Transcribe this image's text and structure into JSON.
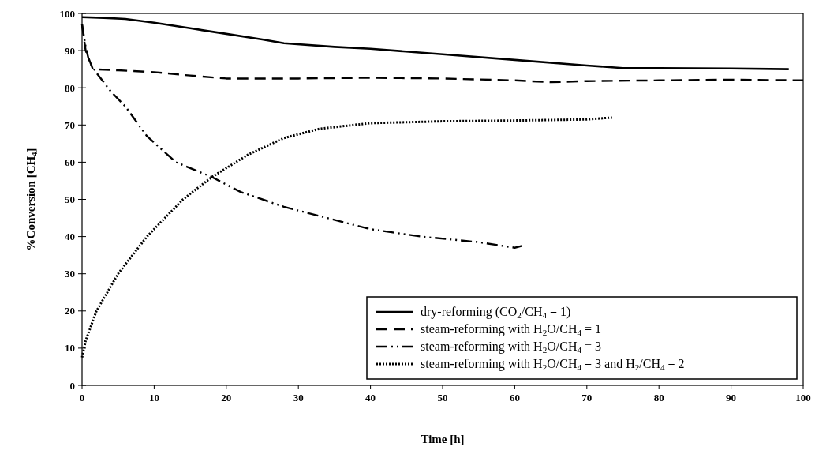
{
  "chart_data": {
    "type": "line",
    "xlabel": "Time [h]",
    "ylabel": "%Conversion [CH$_{4}$]",
    "xlim": [
      0,
      100
    ],
    "ylim": [
      0,
      100
    ],
    "xticks": [
      0,
      10,
      20,
      30,
      40,
      50,
      60,
      70,
      80,
      90,
      100
    ],
    "yticks": [
      0,
      10,
      20,
      30,
      40,
      50,
      60,
      70,
      80,
      90,
      100
    ],
    "grid": false,
    "legend": "bottom right",
    "series": [
      {
        "name": "dry-reforming  (CO$_{2}$/CH$_{4}$ = 1)",
        "color": "#000000",
        "line_style": "solid",
        "x": [
          0,
          3,
          6,
          10,
          15,
          20,
          25,
          28,
          35,
          40,
          50,
          60,
          70,
          75,
          80,
          90,
          98
        ],
        "values": [
          99,
          98.8,
          98.5,
          97.5,
          96,
          94.5,
          93,
          92,
          91,
          90.5,
          89,
          87.5,
          86,
          85.3,
          85.3,
          85.2,
          85
        ]
      },
      {
        "name": "steam-reforming with  H$_{2}$O/CH$_{4}$ = 1",
        "color": "#000000",
        "line_style": "dashed",
        "x": [
          0,
          0.5,
          1.5,
          5,
          10,
          15,
          20,
          30,
          40,
          50,
          60,
          65,
          70,
          80,
          90,
          100
        ],
        "values": [
          97,
          90,
          85,
          84.7,
          84.2,
          83.3,
          82.5,
          82.5,
          82.7,
          82.5,
          82,
          81.5,
          81.8,
          82,
          82.2,
          82
        ]
      },
      {
        "name": "steam-reforming with  H$_{2}$O/CH$_{4}$ = 3",
        "color": "#000000",
        "line_style": "dashdot",
        "x": [
          0,
          0.5,
          1,
          2,
          4,
          6,
          9,
          13,
          18,
          22,
          28,
          34,
          40,
          47,
          55,
          60,
          61
        ],
        "values": [
          97,
          91,
          87,
          84,
          79,
          75,
          67,
          60,
          56,
          52,
          48,
          45,
          42,
          40,
          38.5,
          37,
          37.5
        ]
      },
      {
        "name": "steam-reforming with  H$_{2}$O/CH$_{4}$ = 3 and H$_{2}$/CH$_{4}$ = 2",
        "color": "#000000",
        "line_style": "dotted",
        "x": [
          0,
          0.5,
          2,
          5,
          9,
          14,
          18,
          23,
          28,
          33,
          40,
          50,
          60,
          70,
          73.5
        ],
        "values": [
          7.5,
          12,
          20,
          30,
          40,
          50,
          56,
          62,
          66.5,
          69,
          70.5,
          71,
          71.2,
          71.5,
          72
        ]
      }
    ]
  }
}
